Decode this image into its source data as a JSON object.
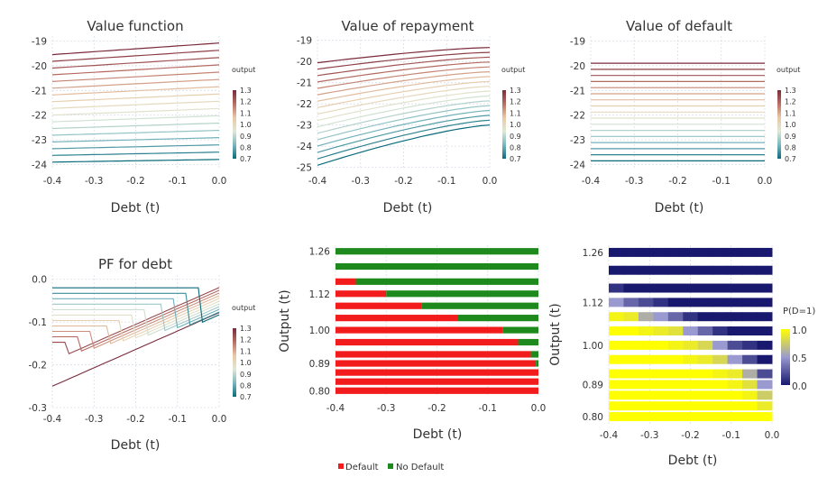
{
  "chart_data": [
    {
      "id": "p1",
      "type": "line",
      "title": "Value function",
      "xlabel": "Debt (t)",
      "ylabel": "",
      "xlim": [
        -0.4,
        0.0
      ],
      "ylim": [
        -24.2,
        -18.8
      ],
      "xticks": [
        -0.4,
        -0.3,
        -0.2,
        -0.1,
        0.0
      ],
      "xtick_labels": [
        "-0.4",
        "-0.3",
        "-0.2",
        "-0.1",
        "0.0"
      ],
      "yticks": [
        -19,
        -20,
        -21,
        -22,
        -23,
        -24
      ],
      "ytick_labels": [
        "-19",
        "-20",
        "-21",
        "-22",
        "-23",
        "-24"
      ],
      "legend_title": "output"
    },
    {
      "id": "p2",
      "type": "line",
      "title": "Value of repayment",
      "xlabel": "Debt (t)",
      "ylabel": "",
      "xlim": [
        -0.4,
        0.0
      ],
      "ylim": [
        -25.1,
        -18.8
      ],
      "xticks": [
        -0.4,
        -0.3,
        -0.2,
        -0.1,
        0.0
      ],
      "xtick_labels": [
        "-0.4",
        "-0.3",
        "-0.2",
        "-0.1",
        "0.0"
      ],
      "yticks": [
        -19,
        -20,
        -21,
        -22,
        -23,
        -24,
        -25
      ],
      "ytick_labels": [
        "-19",
        "-20",
        "-21",
        "-22",
        "-23",
        "-24",
        "-25"
      ],
      "legend_title": "output"
    },
    {
      "id": "p3",
      "type": "line",
      "title": "Value of default",
      "xlabel": "Debt (t)",
      "ylabel": "",
      "xlim": [
        -0.4,
        0.0
      ],
      "ylim": [
        -24.2,
        -18.8
      ],
      "xticks": [
        -0.4,
        -0.3,
        -0.2,
        -0.1,
        0.0
      ],
      "xtick_labels": [
        "-0.4",
        "-0.3",
        "-0.2",
        "-0.1",
        "0.0"
      ],
      "yticks": [
        -19,
        -20,
        -21,
        -22,
        -23,
        -24
      ],
      "ytick_labels": [
        "-19",
        "-20",
        "-21",
        "-22",
        "-23",
        "-24"
      ],
      "legend_title": "output"
    },
    {
      "id": "p4",
      "type": "line",
      "title": "PF for debt",
      "xlabel": "Debt (t)",
      "ylabel": "",
      "xlim": [
        -0.4,
        0.0
      ],
      "ylim": [
        -0.3,
        0.01
      ],
      "xticks": [
        -0.4,
        -0.3,
        -0.2,
        -0.1,
        0.0
      ],
      "xtick_labels": [
        "-0.4",
        "-0.3",
        "-0.2",
        "-0.1",
        "0.0"
      ],
      "yticks": [
        0.0,
        -0.1,
        -0.2,
        -0.3
      ],
      "ytick_labels": [
        "0.0",
        "-0.1",
        "-0.2",
        "-0.3"
      ],
      "legend_title": "output"
    },
    {
      "id": "p5",
      "type": "heatmap",
      "title": "",
      "xlabel": "Debt (t)",
      "ylabel": "Output (t)",
      "xlim": [
        -0.4,
        0.0
      ],
      "ylim": [
        0.78,
        1.28
      ],
      "xticks": [
        -0.4,
        -0.3,
        -0.2,
        -0.1,
        0.0
      ],
      "xtick_labels": [
        "-0.4",
        "-0.3",
        "-0.2",
        "-0.1",
        "0.0"
      ],
      "yticks": [
        0.8,
        0.89,
        1.0,
        1.12,
        1.26
      ],
      "ytick_labels": [
        "0.80",
        "0.89",
        "1.00",
        "1.12",
        "1.26"
      ],
      "output_levels": [
        0.8,
        0.83,
        0.86,
        0.89,
        0.92,
        0.96,
        1.0,
        1.04,
        1.08,
        1.12,
        1.16,
        1.21,
        1.26
      ],
      "default_boundary_debt": [
        0.0,
        0.0,
        0.0,
        -0.005,
        -0.015,
        -0.04,
        -0.07,
        -0.16,
        -0.23,
        -0.3,
        -0.36,
        -0.4,
        -0.4
      ],
      "legend_entries": [
        "Default",
        "No Default"
      ]
    },
    {
      "id": "p6",
      "type": "heatmap",
      "title": "",
      "xlabel": "Debt (t)",
      "ylabel": "Output (t)",
      "xlim": [
        -0.4,
        0.0
      ],
      "ylim": [
        0.78,
        1.28
      ],
      "xticks": [
        -0.4,
        -0.3,
        -0.2,
        -0.1,
        0.0
      ],
      "xtick_labels": [
        "-0.4",
        "-0.3",
        "-0.2",
        "-0.1",
        "0.0"
      ],
      "yticks": [
        0.8,
        0.89,
        1.0,
        1.12,
        1.26
      ],
      "ytick_labels": [
        "0.80",
        "0.89",
        "1.00",
        "1.12",
        "1.26"
      ],
      "output_levels": [
        0.8,
        0.83,
        0.86,
        0.89,
        0.92,
        0.96,
        1.0,
        1.04,
        1.08,
        1.12,
        1.16,
        1.21,
        1.26
      ],
      "x_bins": [
        -0.39,
        -0.35,
        -0.31,
        -0.27,
        -0.23,
        -0.19,
        -0.15,
        -0.11,
        -0.07,
        -0.03,
        -0.005
      ],
      "prob_default": [
        [
          1,
          1,
          1,
          1,
          1,
          1,
          1,
          1,
          1,
          1,
          1
        ],
        [
          1,
          1,
          1,
          1,
          1,
          1,
          1,
          1,
          1,
          1,
          0.9
        ],
        [
          1,
          1,
          1,
          1,
          1,
          1,
          1,
          1,
          1,
          0.95,
          0.75
        ],
        [
          1,
          1,
          1,
          1,
          1,
          1,
          1,
          1,
          0.95,
          0.85,
          0.5
        ],
        [
          1,
          1,
          1,
          1,
          1,
          1,
          1,
          0.95,
          0.9,
          0.6,
          0.2
        ],
        [
          1,
          1,
          1,
          1,
          1,
          0.95,
          0.9,
          0.8,
          0.5,
          0.2,
          0
        ],
        [
          1,
          1,
          1,
          1,
          0.95,
          0.9,
          0.8,
          0.5,
          0.2,
          0.1,
          0
        ],
        [
          1,
          1,
          0.95,
          0.9,
          0.85,
          0.5,
          0.3,
          0.1,
          0,
          0,
          0
        ],
        [
          0.95,
          0.9,
          0.6,
          0.5,
          0.3,
          0.1,
          0,
          0,
          0,
          0,
          0
        ],
        [
          0.5,
          0.3,
          0.2,
          0.1,
          0,
          0,
          0,
          0,
          0,
          0,
          0
        ],
        [
          0.1,
          0,
          0,
          0,
          0,
          0,
          0,
          0,
          0,
          0,
          0
        ],
        [
          0,
          0,
          0,
          0,
          0,
          0,
          0,
          0,
          0,
          0,
          0
        ],
        [
          0,
          0,
          0,
          0,
          0,
          0,
          0,
          0,
          0,
          0,
          0
        ]
      ],
      "legend_title": "P(D=1)",
      "legend_ticks": [
        "1.0",
        "0.5",
        "0.0"
      ]
    }
  ],
  "colorbar": {
    "ticks": [
      "1.3",
      "1.2",
      "1.1",
      "1.0",
      "0.9",
      "0.8",
      "0.7"
    ]
  },
  "colors": {
    "default": "#f21c1c",
    "no_default": "#1e8a1e",
    "p_high": "#ffff00",
    "p_low": "#18186e"
  }
}
